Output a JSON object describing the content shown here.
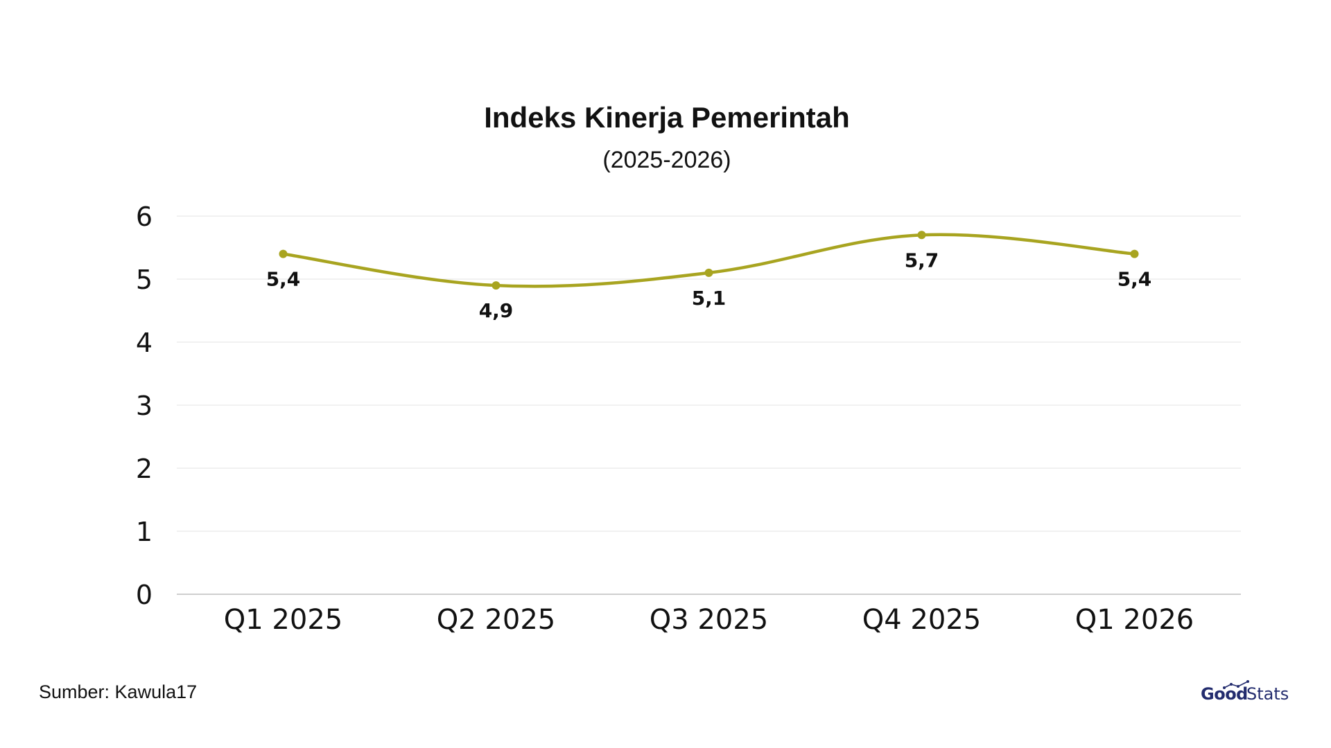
{
  "chart_data": {
    "type": "line",
    "title": "Indeks Kinerja Pemerintah",
    "subtitle": "(2025-2026)",
    "categories": [
      "Q1 2025",
      "Q2 2025",
      "Q3 2025",
      "Q4 2025",
      "Q1 2026"
    ],
    "series": [
      {
        "values": [
          5.4,
          4.9,
          5.1,
          5.7,
          5.4
        ],
        "data_labels": [
          "5,4",
          "4,9",
          "5,1",
          "5,7",
          "5,4"
        ],
        "color": "#a8a420"
      }
    ],
    "ylim": [
      0,
      6
    ],
    "yticks": [
      "0",
      "1",
      "2",
      "3",
      "4",
      "5",
      "6"
    ],
    "grid": true,
    "legend": "none",
    "smooth": true
  },
  "footer": {
    "source": "Sumber: Kawula17",
    "logo_bold": "Good",
    "logo_regular": "Stats"
  },
  "colors": {
    "line": "#a8a420",
    "grid": "#e3e3e3",
    "axis": "#bdbdbd",
    "logo": "#232c6e"
  }
}
